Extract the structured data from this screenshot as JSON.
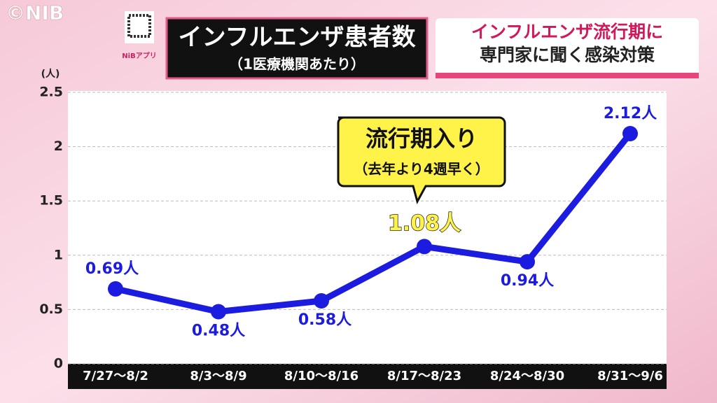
{
  "header": {
    "copyright": "©NIB",
    "app_label": "NiBアプリ",
    "headline": [
      "インフルエンザ流行期に",
      "専門家に聞く感染対策"
    ]
  },
  "chart_data": {
    "type": "line",
    "title": "インフルエンザ患者数",
    "subtitle": "（1医療機関あたり）",
    "y_unit": "(人)",
    "categories": [
      "7/27〜8/2",
      "8/3〜8/9",
      "8/10〜8/16",
      "8/17〜8/23",
      "8/24〜8/30",
      "8/31〜9/6"
    ],
    "series": [
      {
        "color": "#1c1ce0",
        "values": [
          0.69,
          0.48,
          0.58,
          1.08,
          0.94,
          2.12
        ],
        "value_labels": [
          "0.69人",
          "0.48人",
          "0.58人",
          "1.08人",
          "0.94人",
          "2.12人"
        ]
      }
    ],
    "ylim": [
      0,
      2.5
    ],
    "yticks": [
      0,
      0.5,
      1,
      1.5,
      2,
      2.5
    ],
    "grid": true,
    "annotation": {
      "title": "流行期入り",
      "text": "（去年より4週早く）"
    }
  }
}
